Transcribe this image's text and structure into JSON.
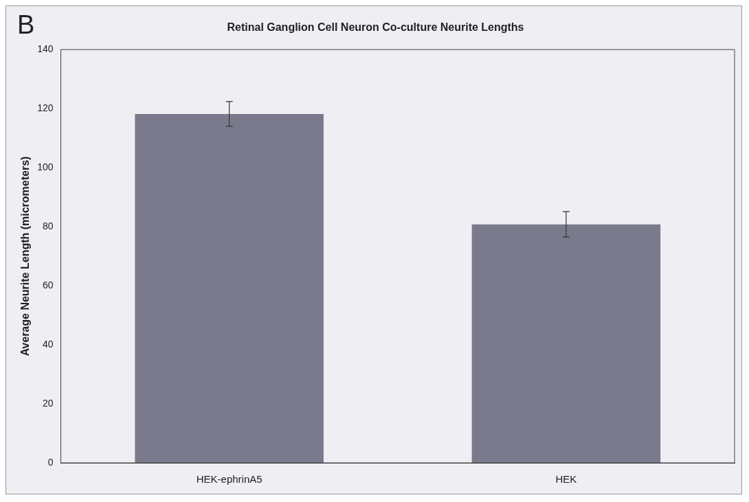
{
  "chart_data": {
    "type": "bar",
    "title": "Retinal Ganglion Cell Neuron Co-culture Neurite Lengths",
    "ylabel": "Average Neurite Length (micrometers)",
    "annotations": [
      "B"
    ],
    "categories": [
      "HEK-ephrinA5",
      "HEK"
    ],
    "values": [
      118.2,
      80.8
    ],
    "errors": [
      4.2,
      4.3
    ],
    "color": "#7a7a8c",
    "ylim": [
      0,
      140
    ],
    "yticks": [
      0,
      20,
      40,
      60,
      80,
      100,
      120,
      140
    ],
    "grid": false,
    "legend": false
  }
}
